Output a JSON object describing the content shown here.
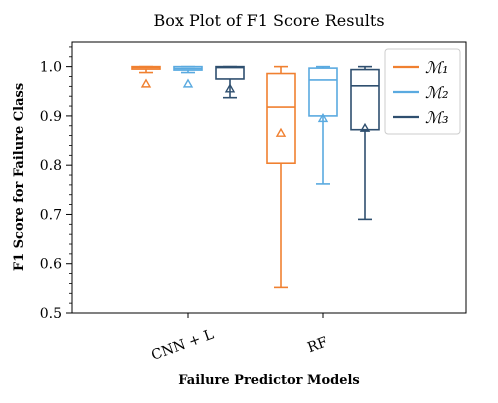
{
  "chart_data": {
    "type": "box",
    "title": "Box Plot of F1 Score Results",
    "xlabel": "Failure Predictor Models",
    "ylabel": "F1 Score for Failure Class",
    "ylim": [
      0.5,
      1.05
    ],
    "yticks": [
      "0.5",
      "0.6",
      "0.7",
      "0.8",
      "0.9",
      "1.0"
    ],
    "categories": [
      "CNN + L",
      "RF"
    ],
    "legend_position": "top-right",
    "grid": false,
    "series": [
      {
        "name": "ℳ₁",
        "color": "#f08030",
        "boxes": [
          {
            "whisker_low": 0.988,
            "q1": 0.995,
            "median": 0.998,
            "q3": 1.0,
            "whisker_high": 1.0,
            "mean": 0.965
          },
          {
            "whisker_low": 0.552,
            "q1": 0.804,
            "median": 0.918,
            "q3": 0.986,
            "whisker_high": 1.0,
            "mean": 0.865
          }
        ]
      },
      {
        "name": "ℳ₂",
        "color": "#5aaae0",
        "boxes": [
          {
            "whisker_low": 0.988,
            "q1": 0.993,
            "median": 0.996,
            "q3": 1.0,
            "whisker_high": 1.0,
            "mean": 0.965
          },
          {
            "whisker_low": 0.762,
            "q1": 0.9,
            "median": 0.973,
            "q3": 0.997,
            "whisker_high": 1.0,
            "mean": 0.895
          }
        ]
      },
      {
        "name": "ℳ₃",
        "color": "#2f4f6f",
        "boxes": [
          {
            "whisker_low": 0.937,
            "q1": 0.975,
            "median": 0.998,
            "q3": 1.0,
            "whisker_high": 1.0,
            "mean": 0.955
          },
          {
            "whisker_low": 0.69,
            "q1": 0.872,
            "median": 0.961,
            "q3": 0.994,
            "whisker_high": 1.0,
            "mean": 0.875
          }
        ]
      }
    ]
  }
}
